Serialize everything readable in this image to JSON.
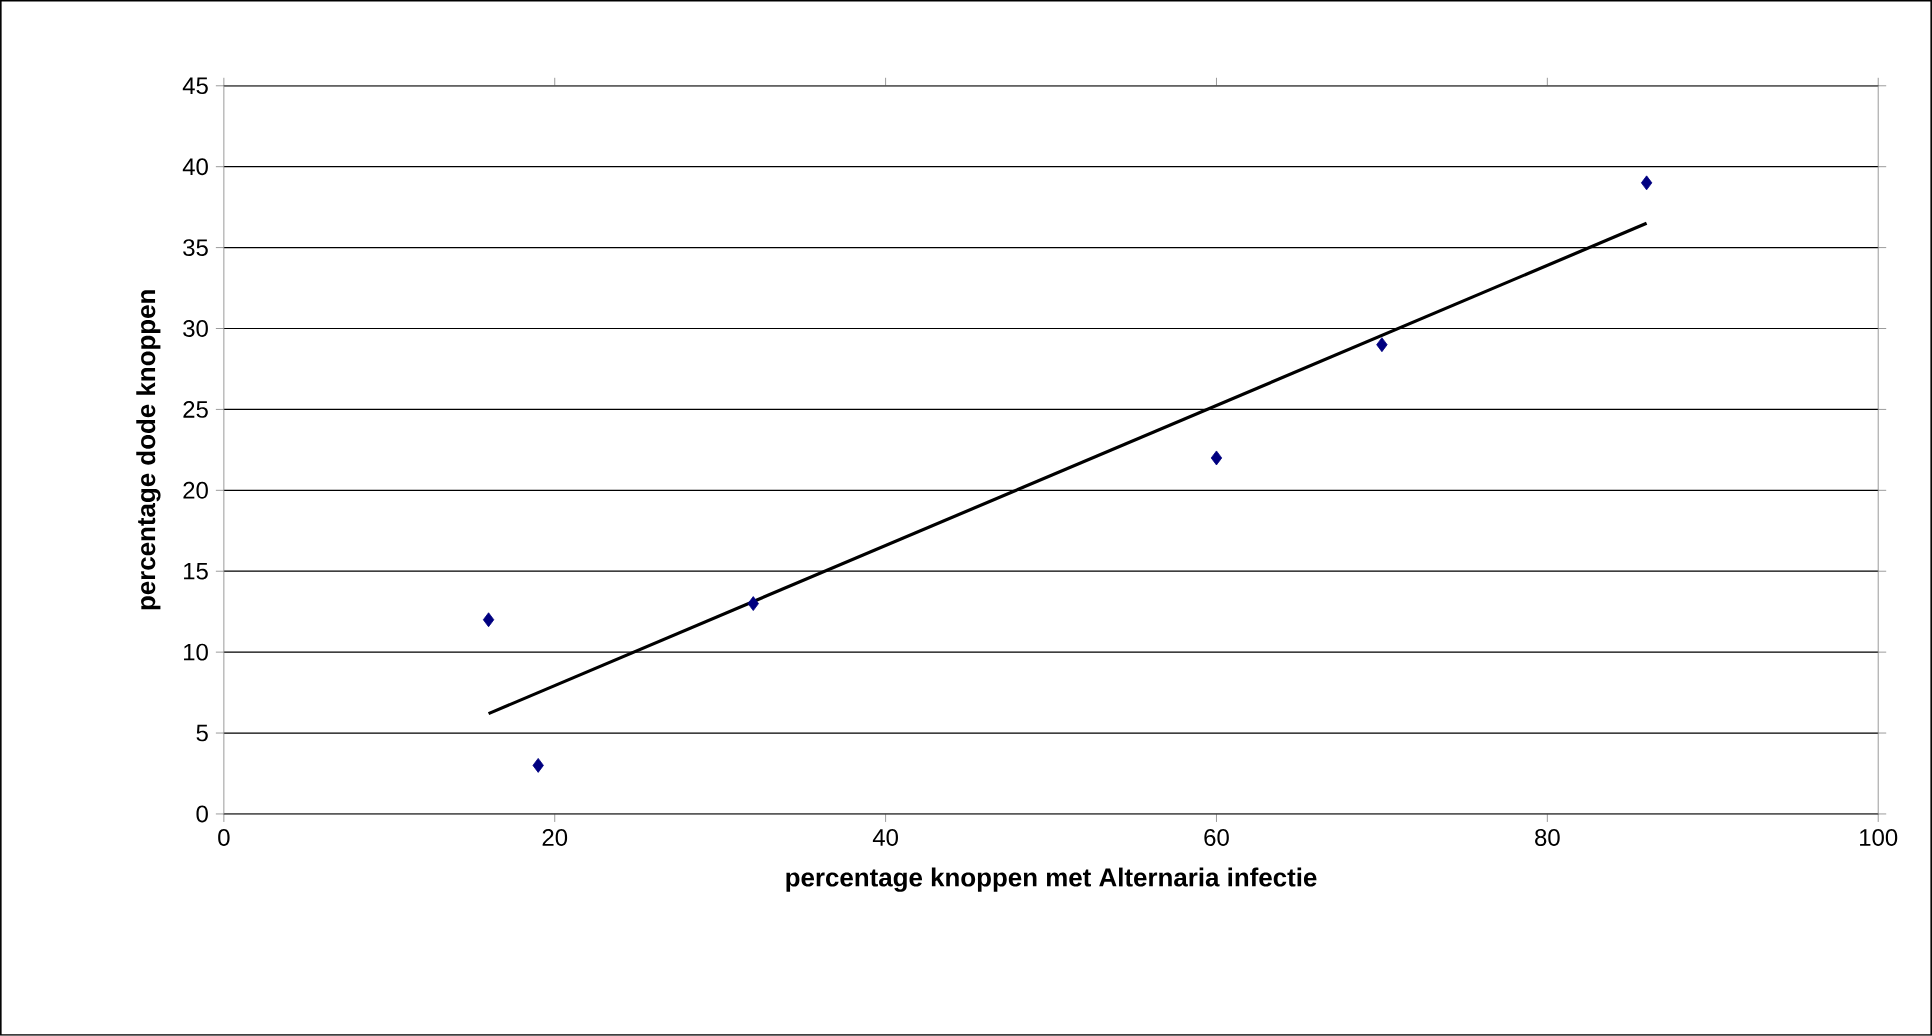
{
  "chart_data": {
    "type": "scatter",
    "xlabel": "percentage knoppen met Alternaria infectie",
    "ylabel": "percentage dode knoppen",
    "xlim": [
      0,
      100
    ],
    "xticks": [
      0,
      20,
      40,
      60,
      80,
      100
    ],
    "ylim": [
      0,
      45
    ],
    "yticks": [
      0,
      5,
      10,
      15,
      20,
      25,
      30,
      35,
      40,
      45
    ],
    "grid": "y",
    "marker": "diamond",
    "series": [
      {
        "color": "#000080",
        "x": [
          16,
          19,
          32,
          60,
          70,
          86
        ],
        "values": [
          12,
          3,
          13,
          22,
          29,
          39
        ]
      },
      {
        "type": "line",
        "color": "#000000",
        "x": [
          16,
          86
        ],
        "values": [
          6.2,
          36.5
        ],
        "marker": "none",
        "line_style": "solid"
      }
    ]
  }
}
